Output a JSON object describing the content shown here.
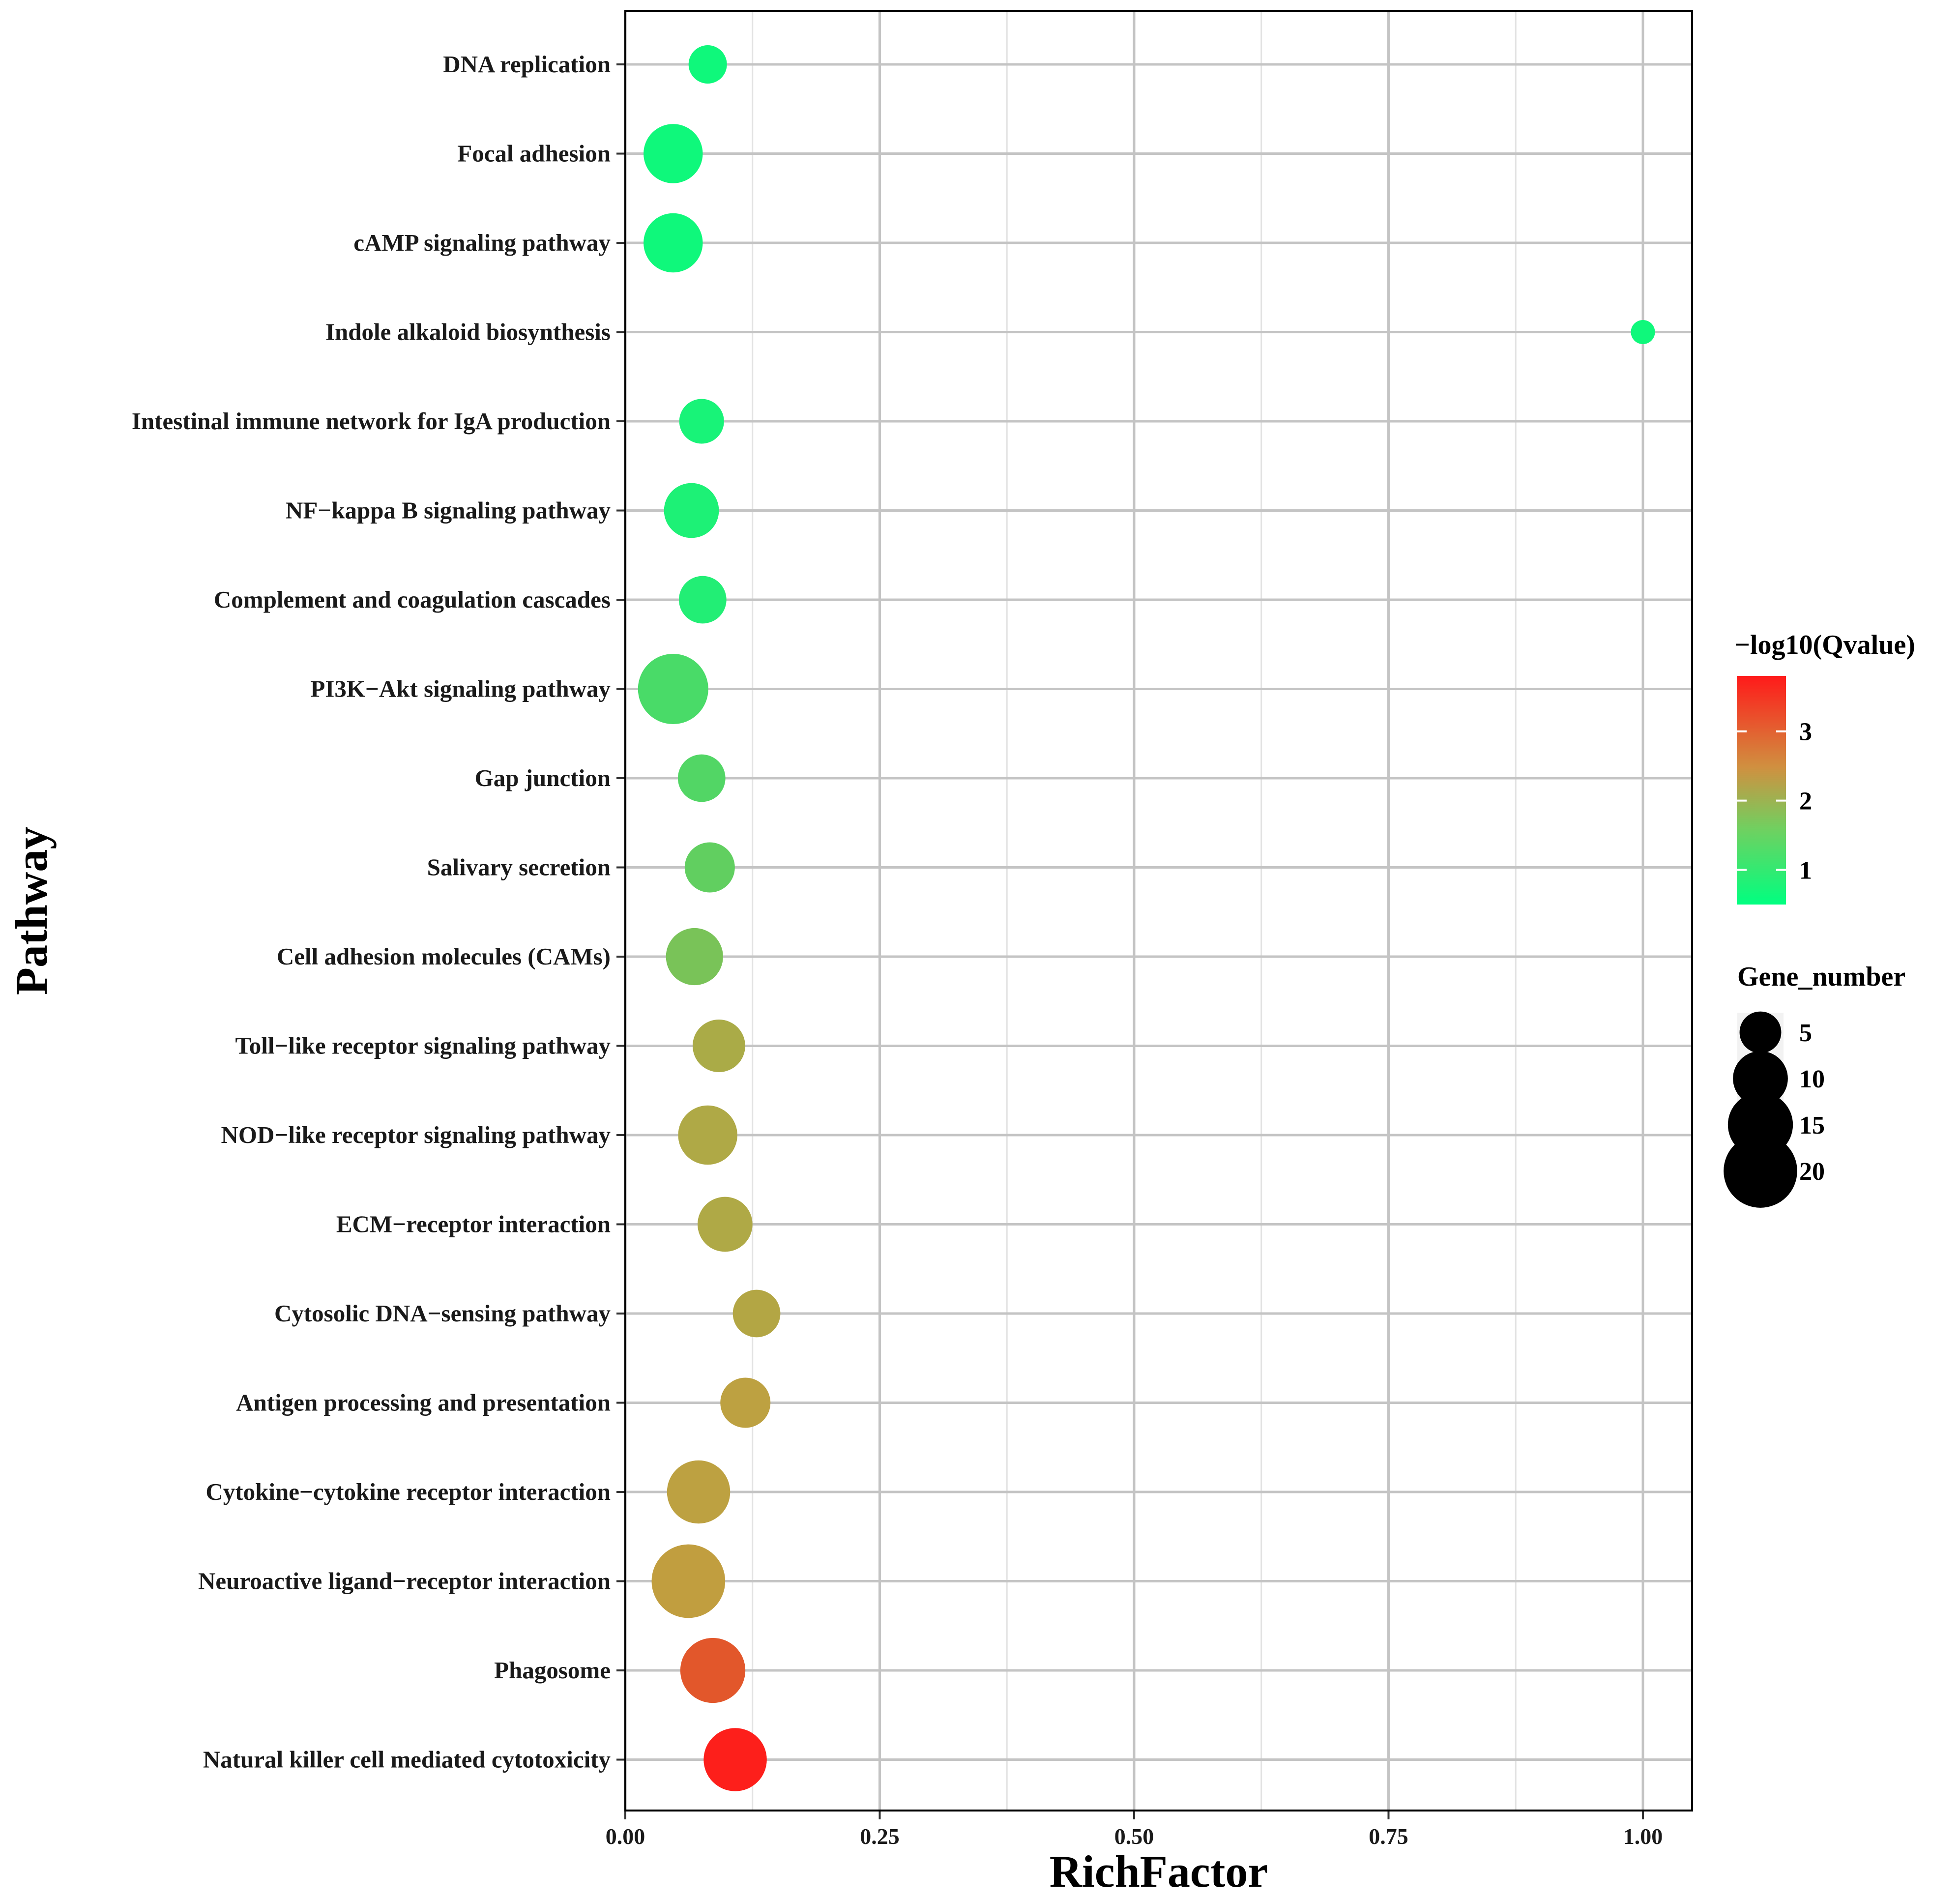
{
  "chart_data": {
    "type": "scatter",
    "title": "",
    "xlabel": "RichFactor",
    "ylabel": "Pathway",
    "xlim": [
      0,
      1.045
    ],
    "xticks": [
      0.0,
      0.25,
      0.5,
      0.75,
      1.0
    ],
    "xtick_labels": [
      "0.00",
      "0.25",
      "0.50",
      "0.75",
      "1.00"
    ],
    "grid": true,
    "categories": [
      "DNA replication",
      "Focal adhesion",
      "cAMP signaling pathway",
      "Indole alkaloid biosynthesis",
      "Intestinal immune network for IgA production",
      "NF−kappa B signaling pathway",
      "Complement and coagulation cascades",
      "PI3K−Akt signaling pathway",
      "Gap junction",
      "Salivary secretion",
      "Cell adhesion molecules (CAMs)",
      "Toll−like receptor signaling pathway",
      "NOD−like receptor signaling pathway",
      "ECM−receptor interaction",
      "Cytosolic DNA−sensing pathway",
      "Antigen processing and presentation",
      "Cytokine−cytokine receptor interaction",
      "Neuroactive ligand−receptor interaction",
      "Phagosome",
      "Natural killer cell mediated cytotoxicity"
    ],
    "rich_factor": [
      0.081,
      0.047,
      0.047,
      1.0,
      0.075,
      0.065,
      0.076,
      0.047,
      0.075,
      0.083,
      0.068,
      0.092,
      0.081,
      0.098,
      0.129,
      0.118,
      0.072,
      0.062,
      0.086,
      0.108
    ],
    "neg_log10_qvalue": [
      0.65,
      0.65,
      0.65,
      0.65,
      0.75,
      0.8,
      0.85,
      1.25,
      1.35,
      1.5,
      1.75,
      2.25,
      2.3,
      2.3,
      2.35,
      2.45,
      2.45,
      2.5,
      3.2,
      3.75
    ],
    "gene_number": [
      4,
      12,
      12,
      1,
      6,
      10,
      7,
      18,
      7,
      8,
      11,
      9,
      12,
      10,
      7,
      8,
      14,
      20,
      15,
      14
    ],
    "color_legend": {
      "title": "−log10(Qvalue)",
      "range": [
        0.5,
        3.8
      ],
      "ticks": [
        "1",
        "2",
        "3"
      ],
      "low_color": "#00ff80",
      "mid_color": "#c0a040",
      "high_color": "#ff1a1a"
    },
    "size_legend": {
      "title": "Gene_number",
      "values": [
        5,
        10,
        15,
        20
      ],
      "labels": [
        "5",
        "10",
        "15",
        "20"
      ]
    }
  }
}
